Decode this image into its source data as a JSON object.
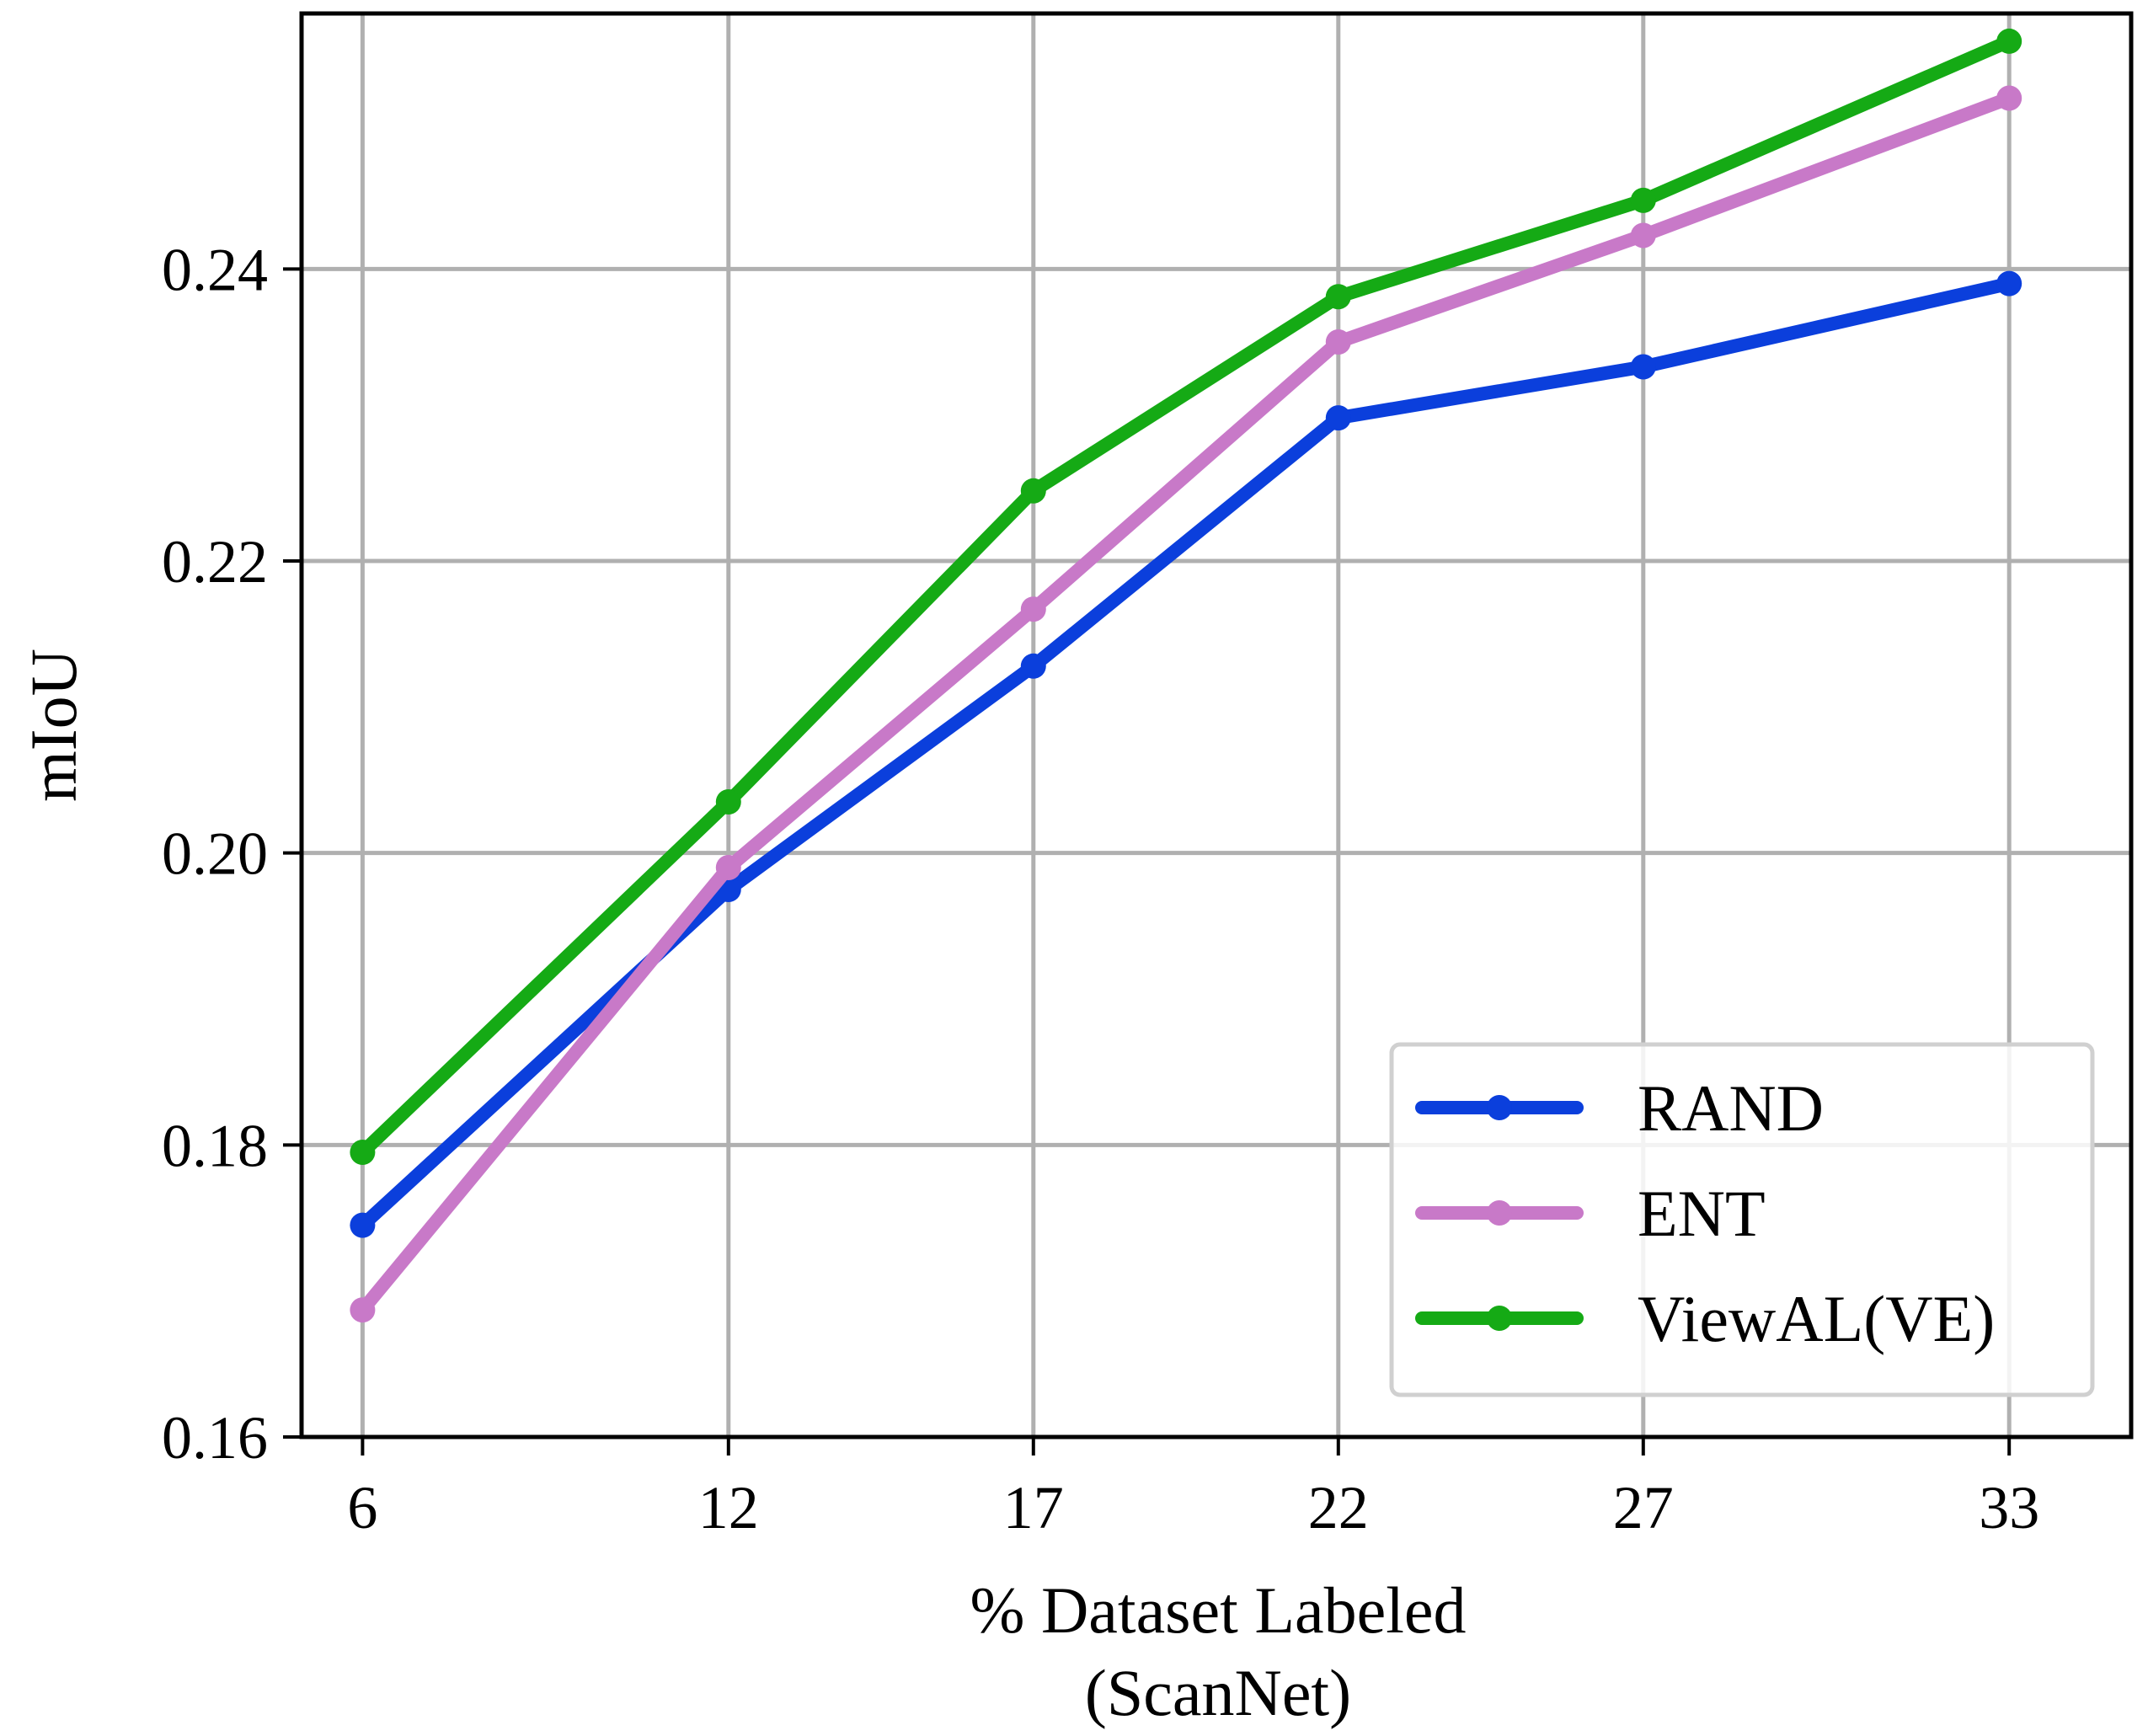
{
  "chart_data": {
    "type": "line",
    "x": [
      6,
      12,
      17,
      22,
      27,
      33
    ],
    "x_tick_labels": [
      "6",
      "12",
      "17",
      "22",
      "27",
      "33"
    ],
    "series": [
      {
        "name": "RAND",
        "color": "#0b3fdc",
        "values": [
          0.1745,
          0.1975,
          0.2128,
          0.2298,
          0.2333,
          0.239
        ]
      },
      {
        "name": "ENT",
        "color": "#c879c8",
        "values": [
          0.1687,
          0.199,
          0.2167,
          0.235,
          0.2423,
          0.2517
        ]
      },
      {
        "name": "ViewAL(VE)",
        "color": "#15aa15",
        "values": [
          0.1795,
          0.2035,
          0.2248,
          0.2381,
          0.2447,
          0.2556
        ]
      }
    ],
    "y_ticks": [
      0.16,
      0.18,
      0.2,
      0.22,
      0.24
    ],
    "y_tick_labels": [
      "0.16",
      "0.18",
      "0.20",
      "0.22",
      "0.24"
    ],
    "ylim": [
      0.16,
      0.2575
    ],
    "xlim": [
      5,
      35
    ],
    "xlabel": "% Dataset Labeled",
    "xlabel_line2": "(ScanNet)",
    "ylabel": "mIoU",
    "grid": true,
    "legend_position": "lower-right"
  }
}
